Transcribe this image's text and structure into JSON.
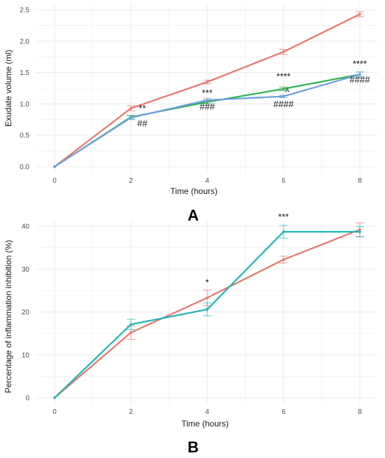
{
  "colors": {
    "red": "#e8746c",
    "green": "#2db34a",
    "blue": "#6d9ee0",
    "teal": "#1fb5b5",
    "grid": "#ebebeb"
  },
  "chart_data": [
    {
      "type": "line",
      "panel_label": "A",
      "xlabel": "Time (hours)",
      "ylabel": "Exudate volume (ml)",
      "xlim": [
        0,
        8
      ],
      "ylim": [
        0,
        2.5
      ],
      "x_ticks": [
        0,
        2,
        4,
        6,
        8
      ],
      "y_ticks": [
        0,
        0.5,
        1.0,
        1.5,
        2.0,
        2.5
      ],
      "y_tick_labels": [
        "0.0",
        "0.5",
        "1.0",
        "1.5",
        "2.0",
        "2.5"
      ],
      "grid": true,
      "x": [
        0,
        2,
        4,
        6,
        8
      ],
      "series": [
        {
          "color": "#e8746c",
          "values": [
            0,
            0.93,
            1.35,
            1.83,
            2.43
          ],
          "errors": [
            0,
            0.04,
            0.03,
            0.04,
            0.04
          ]
        },
        {
          "color": "#2db34a",
          "values": [
            0,
            0.79,
            1.03,
            1.24,
            1.47
          ],
          "errors": [
            0,
            0.03,
            0.03,
            0.03,
            0.04
          ]
        },
        {
          "color": "#6d9ee0",
          "values": [
            0,
            0.78,
            1.06,
            1.12,
            1.47
          ],
          "errors": [
            0,
            0.03,
            0.03,
            0.02,
            0.04
          ]
        }
      ],
      "annotations": [
        {
          "text": "**",
          "x": 2.3,
          "y": 0.88
        },
        {
          "text": "##",
          "x": 2.3,
          "y": 0.64
        },
        {
          "text": "***",
          "x": 4.0,
          "y": 1.13
        },
        {
          "text": "###",
          "x": 4.0,
          "y": 0.91
        },
        {
          "text": "****",
          "x": 6.0,
          "y": 1.39
        },
        {
          "text": "^",
          "x": 6.1,
          "y": 1.14
        },
        {
          "text": "####",
          "x": 6.0,
          "y": 0.95
        },
        {
          "text": "****",
          "x": 8.0,
          "y": 1.59
        },
        {
          "text": "####",
          "x": 8.0,
          "y": 1.34
        }
      ]
    },
    {
      "type": "line",
      "panel_label": "B",
      "xlabel": "Time (hours)",
      "ylabel": "Percentage of inflammation inhibition (%)",
      "xlim": [
        0,
        8
      ],
      "ylim": [
        0,
        40
      ],
      "x_ticks": [
        0,
        2,
        4,
        6,
        8
      ],
      "y_ticks": [
        0,
        10,
        20,
        30,
        40
      ],
      "y_tick_labels": [
        "0",
        "10",
        "20",
        "30",
        "40"
      ],
      "grid": true,
      "x": [
        0,
        2,
        4,
        6,
        8
      ],
      "series": [
        {
          "color": "#e8746c",
          "values": [
            0,
            15.2,
            23.3,
            32.2,
            39.2
          ],
          "errors": [
            0,
            1.6,
            1.8,
            0.8,
            1.6
          ]
        },
        {
          "color": "#1fb5b5",
          "values": [
            0,
            17.1,
            20.6,
            38.7,
            38.7
          ],
          "errors": [
            0,
            1.2,
            1.5,
            1.5,
            1.2
          ]
        }
      ],
      "annotations": [
        {
          "text": "*",
          "x": 4.0,
          "y": 26.2
        },
        {
          "text": "***",
          "x": 6.0,
          "y": 41.5
        }
      ]
    }
  ]
}
